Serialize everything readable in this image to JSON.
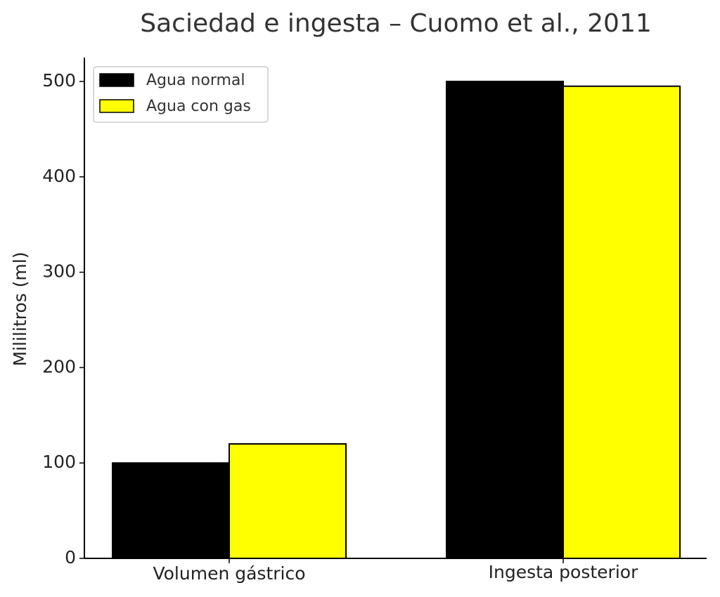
{
  "chart_data": {
    "type": "bar",
    "title": "Saciedad e ingesta – Cuomo et al., 2011",
    "y_label": "Mililitros (ml)",
    "categories": [
      "Volumen gástrico",
      "Ingesta posterior"
    ],
    "series": [
      {
        "name": "Agua normal",
        "color": "#000000",
        "values": [
          100,
          500
        ]
      },
      {
        "name": "Agua con gas",
        "color": "#ffff00",
        "values": [
          120,
          495
        ]
      }
    ],
    "ylim": [
      0,
      525
    ],
    "yticks": [
      0,
      100,
      200,
      300,
      400,
      500
    ],
    "grid": false,
    "legend": "upper-left"
  }
}
